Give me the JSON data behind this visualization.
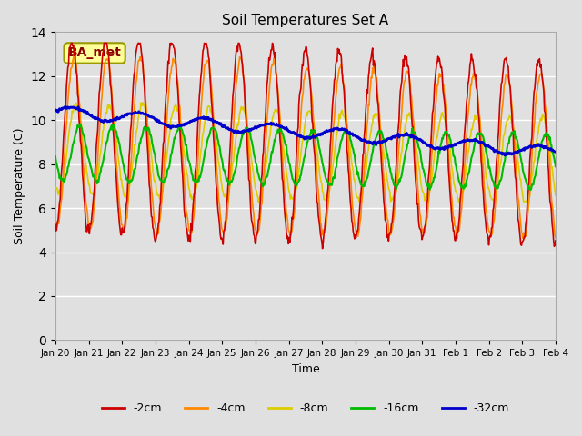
{
  "title": "Soil Temperatures Set A",
  "xlabel": "Time",
  "ylabel": "Soil Temperature (C)",
  "annotation": "BA_met",
  "ylim": [
    0,
    14
  ],
  "yticks": [
    0,
    2,
    4,
    6,
    8,
    10,
    12,
    14
  ],
  "background_color": "#e0e0e0",
  "series_colors": {
    "-2cm": "#cc0000",
    "-4cm": "#ff8800",
    "-8cm": "#ddcc00",
    "-16cm": "#00bb00",
    "-32cm": "#0000cc"
  },
  "x_tick_labels": [
    "Jan 20",
    "Jan 21",
    "Jan 22",
    "Jan 23",
    "Jan 24",
    "Jan 25",
    "Jan 26",
    "Jan 27",
    "Jan 28",
    "Jan 29",
    "Jan 30",
    "Jan 31",
    "Feb 1",
    "Feb 2",
    "Feb 3",
    "Feb 4"
  ],
  "n_days": 15
}
